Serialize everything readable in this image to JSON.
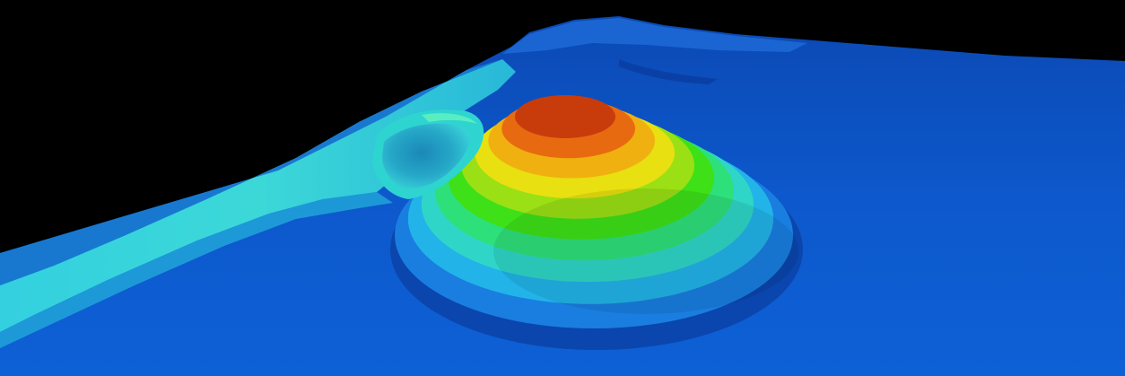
{
  "scene": {
    "subject": "3d-terrain-surface-render",
    "background_color": "#000000",
    "surface_base_color": "#0d56c8",
    "colormap": [
      "#0a3ea8",
      "#0d56c8",
      "#1a7ee0",
      "#22b4e8",
      "#2fd6c8",
      "#2ee07a",
      "#3ee018",
      "#9be014",
      "#e8e010",
      "#f0b010",
      "#e86a10",
      "#c83c0c"
    ],
    "features": [
      "ridge-embankment",
      "conical-mound",
      "contour-bands",
      "distant-hill"
    ]
  }
}
